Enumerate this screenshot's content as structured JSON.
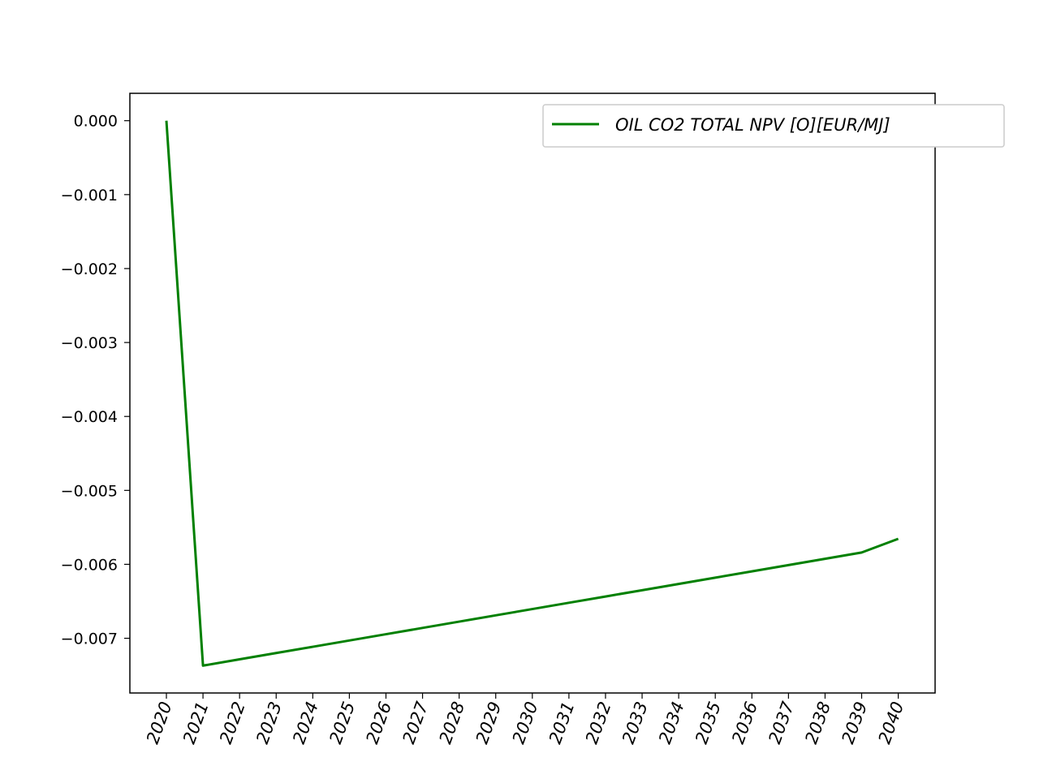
{
  "chart_data": {
    "type": "line",
    "title": "",
    "xlabel": "",
    "ylabel": "",
    "x": [
      "2020",
      "2021",
      "2022",
      "2023",
      "2024",
      "2025",
      "2026",
      "2027",
      "2028",
      "2029",
      "2030",
      "2031",
      "2032",
      "2033",
      "2034",
      "2035",
      "2036",
      "2037",
      "2038",
      "2039",
      "2040"
    ],
    "series": [
      {
        "name": "OIL CO2 TOTAL NPV [O][EUR/MJ]",
        "color": "#008000",
        "values": [
          0.0,
          -0.00737,
          -0.007285,
          -0.0072,
          -0.007115,
          -0.00703,
          -0.006945,
          -0.00686,
          -0.006775,
          -0.00669,
          -0.006605,
          -0.00652,
          -0.006435,
          -0.00635,
          -0.006265,
          -0.00618,
          -0.006095,
          -0.00601,
          -0.005925,
          -0.00584,
          -0.005655
        ]
      }
    ],
    "yticks": [
      "0.000",
      "−0.001",
      "−0.002",
      "−0.003",
      "−0.004",
      "−0.005",
      "−0.006",
      "−0.007"
    ],
    "ytick_values": [
      0.0,
      -0.001,
      -0.002,
      -0.003,
      -0.004,
      -0.005,
      -0.006,
      -0.007
    ],
    "ylim": [
      -0.00774,
      0.00037
    ],
    "grid": false,
    "legend_position": "top-right"
  }
}
